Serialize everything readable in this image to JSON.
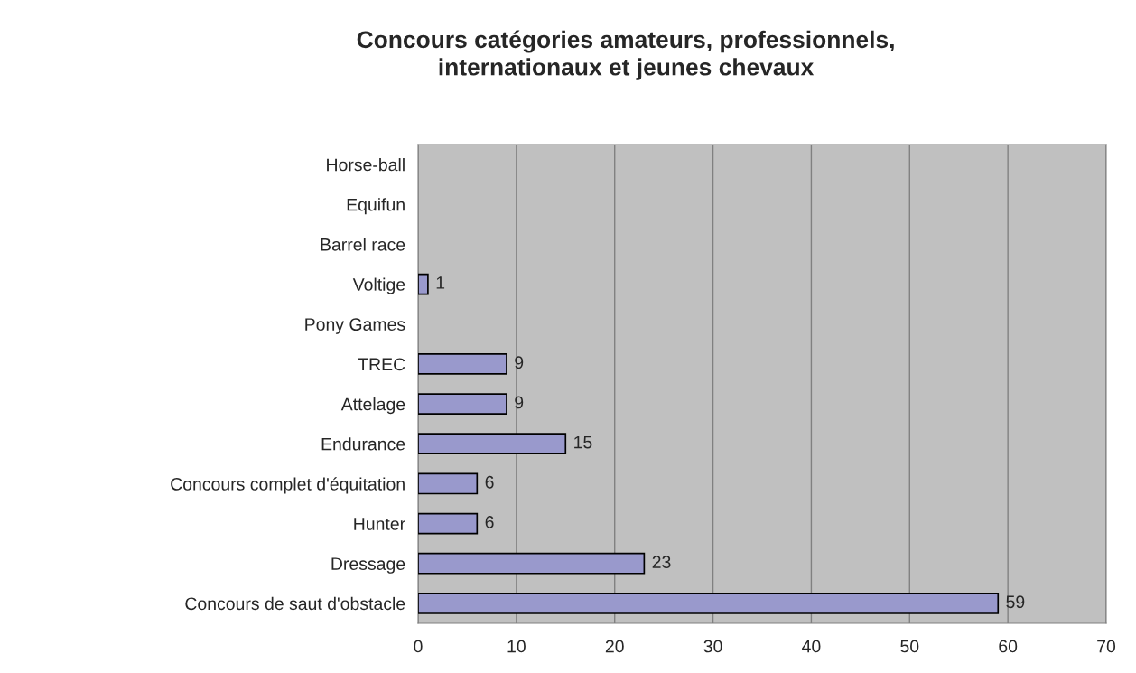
{
  "chart_data": {
    "type": "bar",
    "orientation": "horizontal",
    "title": "Concours catégories amateurs, professionnels,\ninternationaux et jeunes chevaux",
    "categories": [
      "Horse-ball",
      "Equifun",
      "Barrel race",
      "Voltige",
      "Pony Games",
      "TREC",
      "Attelage",
      "Endurance",
      "Concours complet d'équitation",
      "Hunter",
      "Dressage",
      "Concours de saut d'obstacle"
    ],
    "values": [
      0,
      0,
      0,
      1,
      0,
      9,
      9,
      15,
      6,
      6,
      23,
      59
    ],
    "value_labels": [
      null,
      null,
      null,
      "1",
      null,
      "9",
      "9",
      "15",
      "6",
      "6",
      "23",
      "59"
    ],
    "color": "#9999cc",
    "xlim": [
      0,
      70
    ],
    "xticks": [
      0,
      10,
      20,
      30,
      40,
      50,
      60,
      70
    ],
    "grid": "x",
    "legend": false
  }
}
